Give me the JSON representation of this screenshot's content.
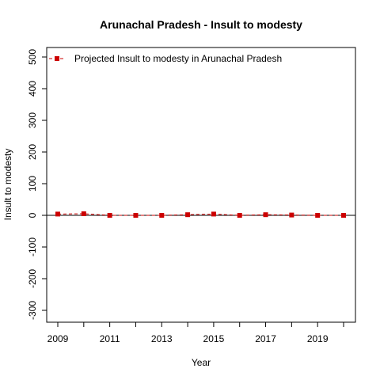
{
  "chart_data": {
    "type": "line",
    "title": "Arunachal Pradesh  -  Insult to modesty",
    "xlabel": "Year",
    "ylabel": "Insult to modesty",
    "x": [
      2009,
      2010,
      2011,
      2012,
      2013,
      2014,
      2015,
      2016,
      2017,
      2018,
      2019,
      2020
    ],
    "xticks": [
      2009,
      2011,
      2013,
      2015,
      2017,
      2019
    ],
    "yticks": [
      -300,
      -200,
      -100,
      0,
      100,
      200,
      300,
      400,
      500
    ],
    "xlim": [
      2009,
      2020
    ],
    "ylim": [
      -300,
      500
    ],
    "series": [
      {
        "name": "Projected  Insult to modesty  in  Arunachal Pradesh",
        "values": [
          4,
          5,
          0,
          0,
          0,
          2,
          4,
          0,
          2,
          1,
          0,
          0
        ],
        "color": "#cc0000",
        "style": "dashed",
        "marker": "square"
      }
    ],
    "reference_line": 0,
    "legend_position": "top-left",
    "grid": false
  }
}
